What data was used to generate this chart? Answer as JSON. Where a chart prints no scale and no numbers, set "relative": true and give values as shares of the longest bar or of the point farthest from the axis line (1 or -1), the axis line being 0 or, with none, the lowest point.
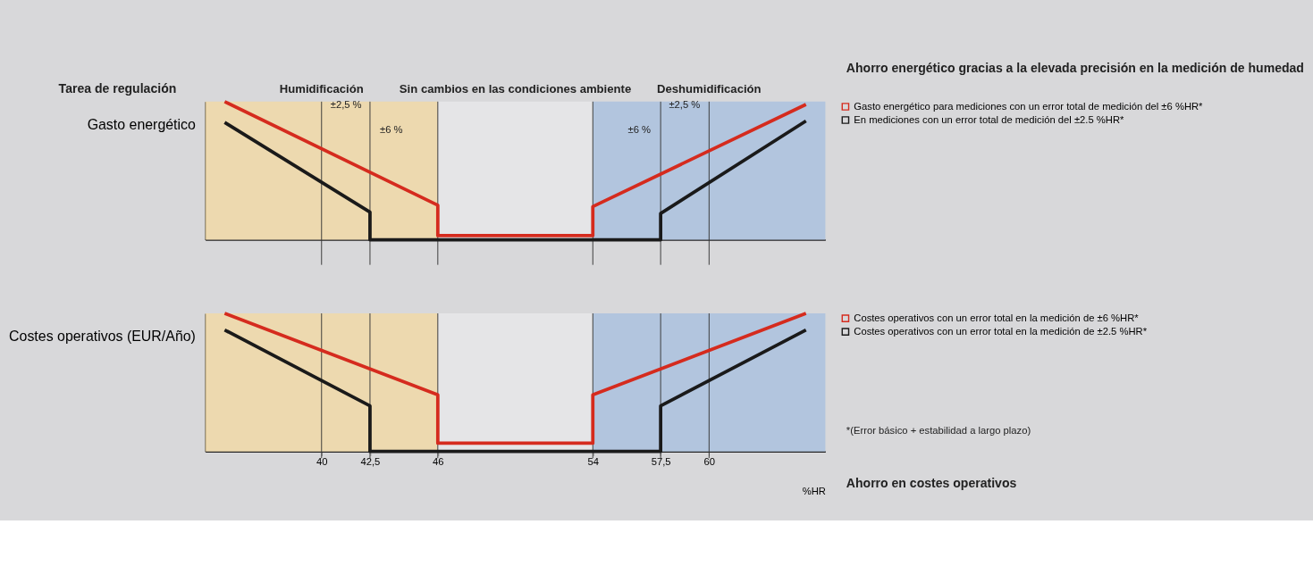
{
  "chart_data": [
    {
      "type": "line",
      "relative": true,
      "ylabel": "Gasto energético",
      "xlim": [
        34,
        66
      ],
      "tick_labels": false,
      "legend": "right",
      "line_style": "solid",
      "bands": [
        {
          "axis": "x",
          "from": 34,
          "to": 46,
          "label": "Humidificación",
          "color": "#f3d9a4"
        },
        {
          "axis": "x",
          "from": 46,
          "to": 54,
          "label": "Sin cambios en las condiciones ambiente",
          "color": "#e8e8ea"
        },
        {
          "axis": "x",
          "from": 54,
          "to": 66,
          "label": "Deshumidificación",
          "color": "#a9c0df"
        }
      ],
      "ref_lines": [
        {
          "axis": "x",
          "value": 40,
          "color": "#333333"
        },
        {
          "axis": "x",
          "value": 42.5,
          "color": "#333333"
        },
        {
          "axis": "x",
          "value": 46,
          "color": "#333333"
        },
        {
          "axis": "x",
          "value": 54,
          "color": "#333333"
        },
        {
          "axis": "x",
          "value": 57.5,
          "color": "#333333"
        },
        {
          "axis": "x",
          "value": 60,
          "color": "#333333"
        }
      ],
      "annotations": [
        "Tarea de regulación",
        "Ahorro energético gracias a la elevada precisión en la medición de humedad",
        "±2,5 %",
        "±6 %",
        "±2,5 %",
        "±6 %"
      ],
      "series": [
        {
          "name": "Gasto energético para mediciones con un error total de medición del ±6 %HR*",
          "color": "#d52b1e",
          "x": [
            35,
            46,
            46,
            54,
            54,
            65
          ],
          "values": [
            1,
            0.25,
            0.03,
            0.03,
            0.24,
            0.98
          ]
        },
        {
          "name": "En mediciones con un error total de medición del ±2.5 %HR*",
          "color": "#1a1a1a",
          "x": [
            35,
            42.5,
            42.5,
            57.5,
            57.5,
            65
          ],
          "values": [
            0.85,
            0.2,
            0,
            0,
            0.19,
            0.86
          ]
        }
      ]
    },
    {
      "type": "line",
      "relative": true,
      "ylabel": "Costes operativos (EUR/Año)",
      "xlabel": "%HR",
      "xlim": [
        34,
        66
      ],
      "xticks": [
        40,
        {
          "value": 42.5,
          "label": "42,5"
        },
        46,
        54,
        {
          "value": 57.5,
          "label": "57,5"
        },
        60
      ],
      "tick_labels": "x",
      "legend": "right",
      "line_style": "solid",
      "bands": [
        {
          "axis": "x",
          "from": 34,
          "to": 46,
          "color": "#f3d9a4"
        },
        {
          "axis": "x",
          "from": 46,
          "to": 54,
          "color": "#e8e8ea"
        },
        {
          "axis": "x",
          "from": 54,
          "to": 66,
          "color": "#a9c0df"
        }
      ],
      "ref_lines": [
        {
          "axis": "x",
          "value": 40,
          "color": "#333333"
        },
        {
          "axis": "x",
          "value": 42.5,
          "color": "#333333"
        },
        {
          "axis": "x",
          "value": 46,
          "color": "#333333"
        },
        {
          "axis": "x",
          "value": 54,
          "color": "#333333"
        },
        {
          "axis": "x",
          "value": 57.5,
          "color": "#333333"
        },
        {
          "axis": "x",
          "value": 60,
          "color": "#333333"
        }
      ],
      "annotations": [
        "*(Error básico + estabilidad a largo plazo)",
        "Ahorro en costes operativos"
      ],
      "series": [
        {
          "name": "Costes operativos con un error total en la medición de ±6 %HR*",
          "color": "#d52b1e",
          "x": [
            35,
            46,
            46,
            54,
            54,
            65
          ],
          "values": [
            1,
            0.41,
            0.06,
            0.06,
            0.41,
            1
          ]
        },
        {
          "name": "Costes operativos con un error total en la medición de ±2.5 %HR*",
          "color": "#1a1a1a",
          "x": [
            35,
            42.5,
            42.5,
            57.5,
            57.5,
            65
          ],
          "values": [
            0.88,
            0.33,
            0,
            0,
            0.33,
            0.88
          ]
        }
      ]
    }
  ]
}
